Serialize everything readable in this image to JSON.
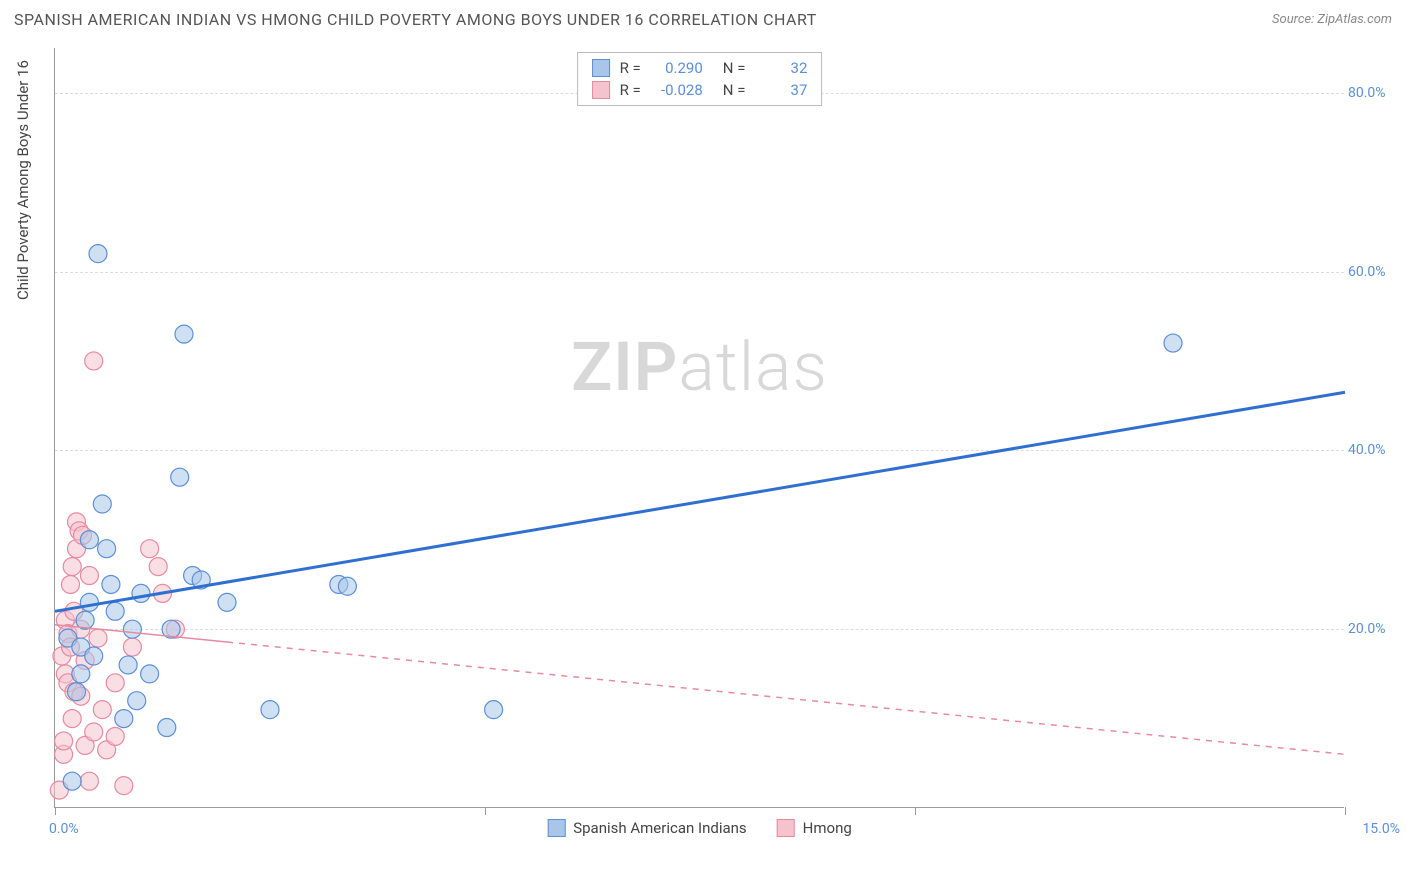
{
  "title": "SPANISH AMERICAN INDIAN VS HMONG CHILD POVERTY AMONG BOYS UNDER 16 CORRELATION CHART",
  "source": "Source: ZipAtlas.com",
  "y_axis_label": "Child Poverty Among Boys Under 16",
  "watermark_bold": "ZIP",
  "watermark_light": "atlas",
  "chart": {
    "type": "scatter",
    "xlim": [
      0,
      15
    ],
    "ylim": [
      0,
      85
    ],
    "y_ticks": [
      20,
      40,
      60,
      80
    ],
    "y_tick_labels": [
      "20.0%",
      "40.0%",
      "60.0%",
      "80.0%"
    ],
    "x_ticks": [
      0,
      5,
      10,
      15
    ],
    "x_range_labels": [
      "0.0%",
      "15.0%"
    ],
    "background_color": "#ffffff",
    "grid_color": "#dddddd",
    "axis_color": "#999999",
    "tick_label_color": "#5b8fd6",
    "marker_radius": 9,
    "marker_opacity": 0.55,
    "series": [
      {
        "name": "Spanish American Indians",
        "fill_color": "#a9c6ea",
        "stroke_color": "#5b8fd6",
        "r_value": "0.290",
        "n_value": "32",
        "trend": {
          "y_at_x0": 22.0,
          "y_at_xmax": 46.5,
          "color": "#2f6fd0",
          "width": 3,
          "dash": "none"
        },
        "points": [
          [
            0.15,
            19
          ],
          [
            0.2,
            3
          ],
          [
            0.25,
            13
          ],
          [
            0.3,
            18
          ],
          [
            0.3,
            15
          ],
          [
            0.35,
            21
          ],
          [
            0.4,
            23
          ],
          [
            0.4,
            30
          ],
          [
            0.45,
            17
          ],
          [
            0.5,
            62
          ],
          [
            0.55,
            34
          ],
          [
            0.6,
            29
          ],
          [
            0.65,
            25
          ],
          [
            0.7,
            22
          ],
          [
            0.8,
            10
          ],
          [
            0.85,
            16
          ],
          [
            0.9,
            20
          ],
          [
            0.95,
            12
          ],
          [
            1.0,
            24
          ],
          [
            1.1,
            15
          ],
          [
            1.3,
            9
          ],
          [
            1.35,
            20
          ],
          [
            1.45,
            37
          ],
          [
            1.5,
            53
          ],
          [
            1.6,
            26
          ],
          [
            1.7,
            25.5
          ],
          [
            2.0,
            23
          ],
          [
            2.5,
            11
          ],
          [
            3.3,
            25
          ],
          [
            3.4,
            24.8
          ],
          [
            5.1,
            11
          ],
          [
            13.0,
            52
          ]
        ]
      },
      {
        "name": "Hmong",
        "fill_color": "#f4c3cd",
        "stroke_color": "#e68aa0",
        "r_value": "-0.028",
        "n_value": "37",
        "trend": {
          "y_at_x0": 20.5,
          "y_at_xmax": 6.0,
          "color": "#e68aa0",
          "width": 1.5,
          "dash": "6,6",
          "solid_until_x": 2.0
        },
        "points": [
          [
            0.05,
            2
          ],
          [
            0.08,
            17
          ],
          [
            0.1,
            6
          ],
          [
            0.1,
            7.5
          ],
          [
            0.12,
            15
          ],
          [
            0.12,
            21
          ],
          [
            0.15,
            14
          ],
          [
            0.15,
            19.5
          ],
          [
            0.18,
            25
          ],
          [
            0.18,
            18
          ],
          [
            0.2,
            27
          ],
          [
            0.2,
            10
          ],
          [
            0.22,
            13
          ],
          [
            0.22,
            22
          ],
          [
            0.25,
            32
          ],
          [
            0.25,
            29
          ],
          [
            0.28,
            31
          ],
          [
            0.3,
            20
          ],
          [
            0.3,
            12.5
          ],
          [
            0.32,
            30.5
          ],
          [
            0.35,
            7
          ],
          [
            0.35,
            16.5
          ],
          [
            0.4,
            3
          ],
          [
            0.4,
            26
          ],
          [
            0.45,
            8.5
          ],
          [
            0.45,
            50
          ],
          [
            0.5,
            19
          ],
          [
            0.55,
            11
          ],
          [
            0.6,
            6.5
          ],
          [
            0.7,
            8
          ],
          [
            0.7,
            14
          ],
          [
            0.8,
            2.5
          ],
          [
            0.9,
            18
          ],
          [
            1.1,
            29
          ],
          [
            1.2,
            27
          ],
          [
            1.25,
            24
          ],
          [
            1.4,
            20
          ]
        ]
      }
    ]
  },
  "legend_top": {
    "r_label": "R =",
    "n_label": "N ="
  },
  "legend_bottom": {
    "series1": "Spanish American Indians",
    "series2": "Hmong"
  }
}
